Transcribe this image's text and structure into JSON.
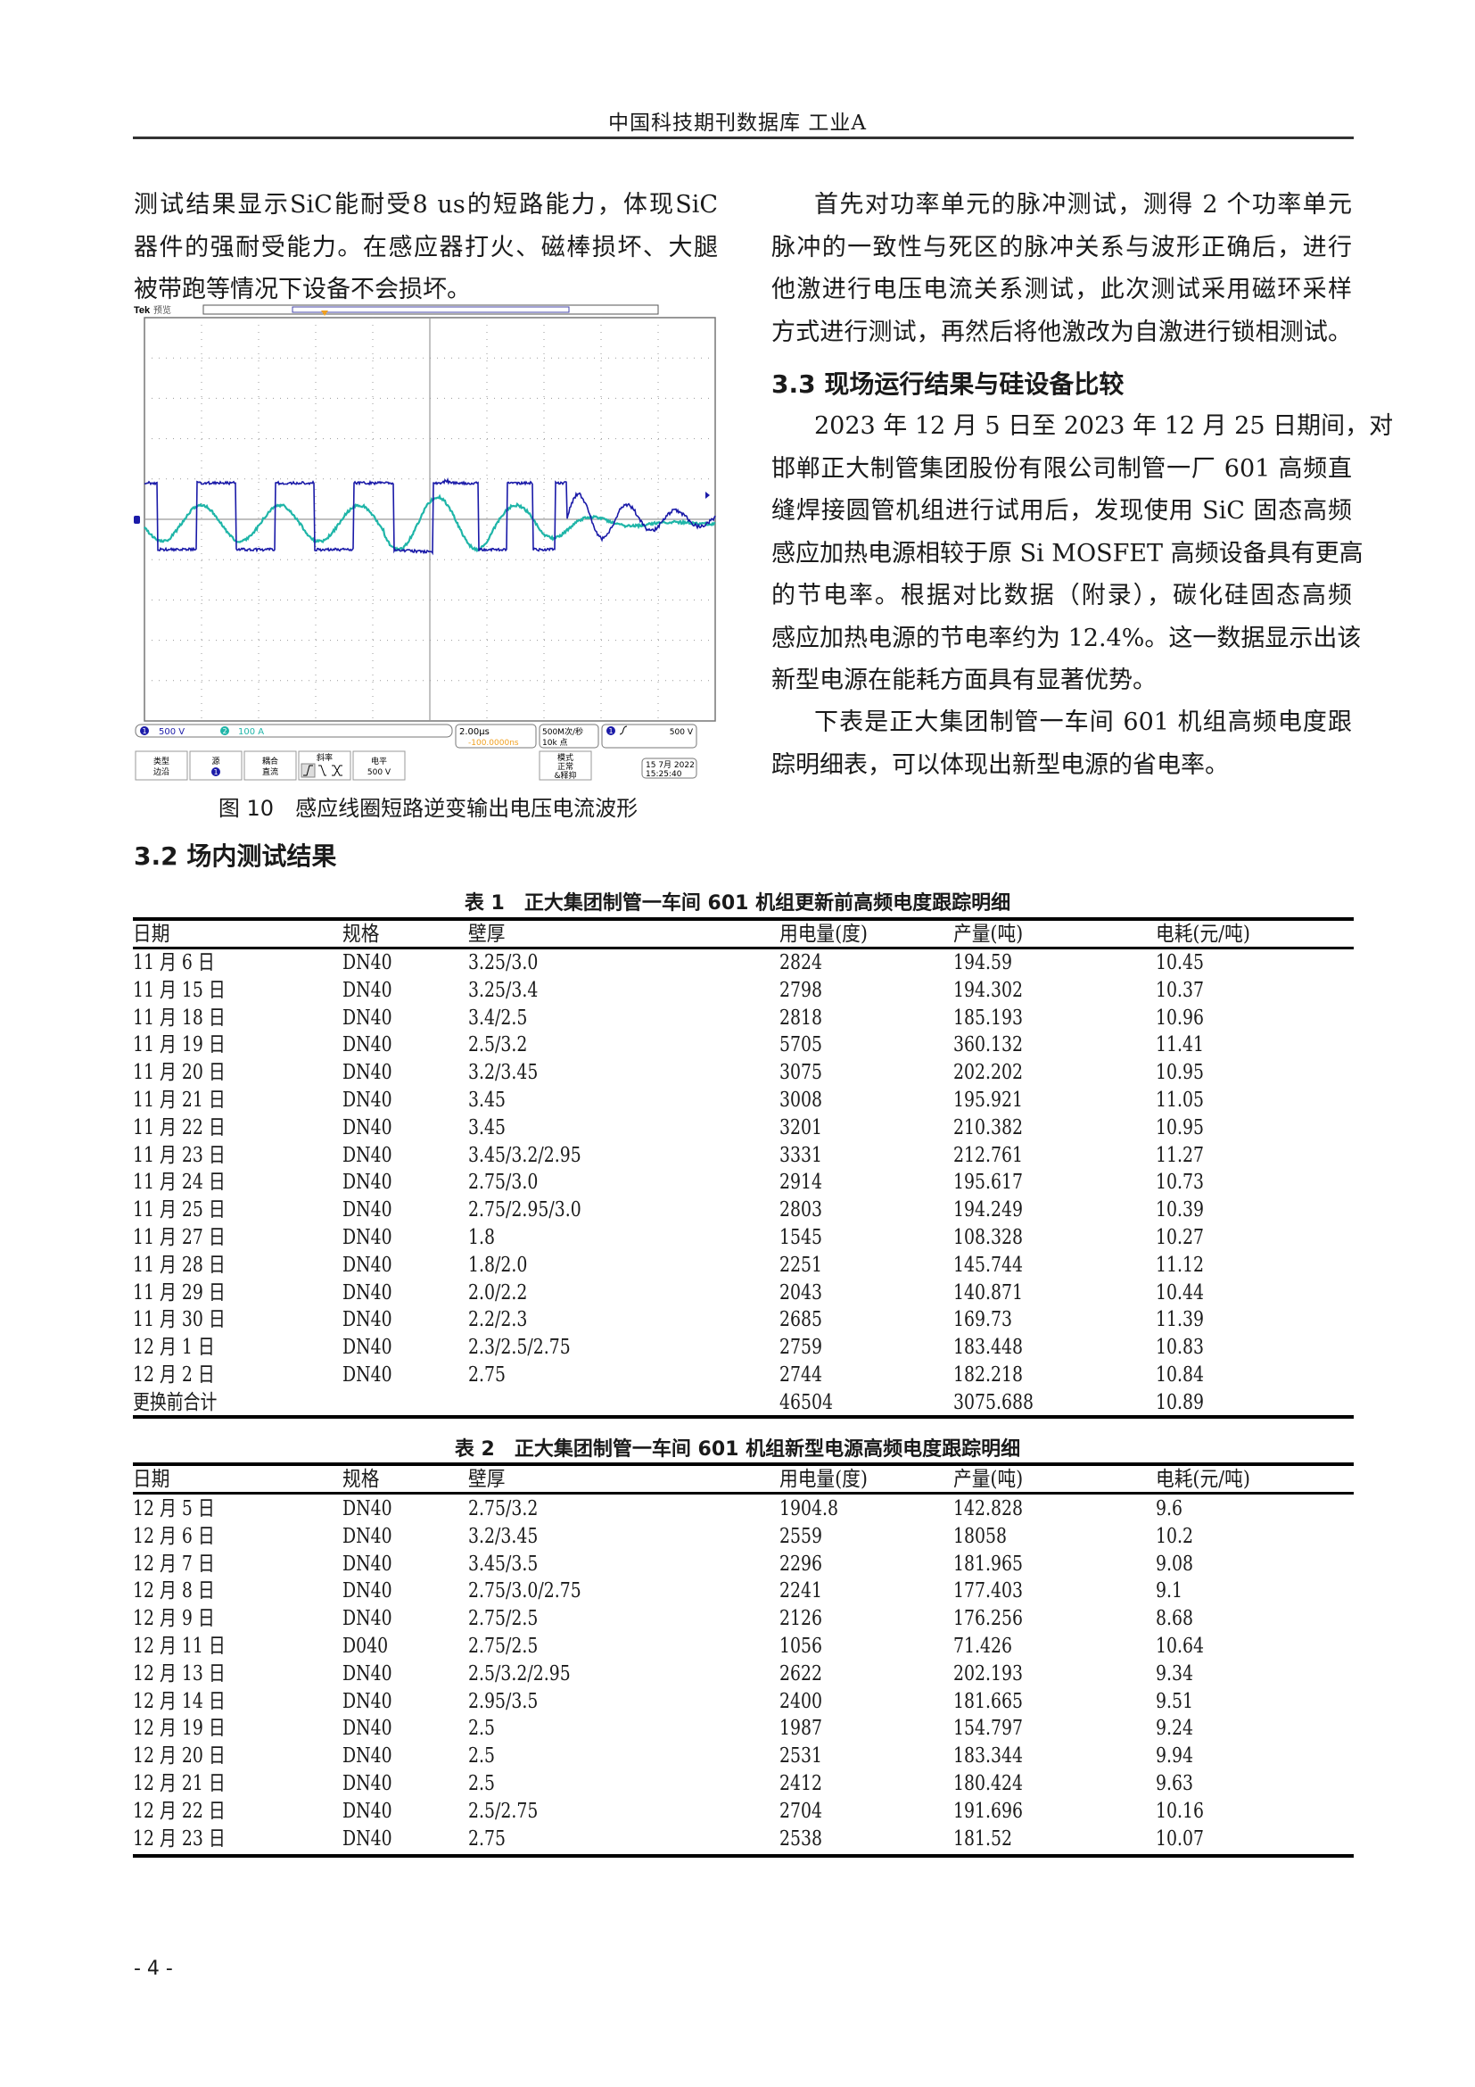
{
  "header": {
    "title": "中国科技期刊数据库 工业A"
  },
  "left_column": {
    "paragraph_lines": [
      "测试结果显示SiC能耐受8 us的短路能力，体现SiC",
      "器件的强耐受能力。在感应器打火、磁棒损坏、大腿",
      "被带跑等情况下设备不会损坏。"
    ]
  },
  "figure": {
    "caption": "图 10　感应线圈短路逆变输出电压电流波形",
    "scope": {
      "brand": "Tek",
      "mode": "预览",
      "ch1_scale": "500 V",
      "ch2_scale": "100 A",
      "ch1_label": "1",
      "ch2_label": "2",
      "timebase": "2.00μs",
      "trigger_offset": "-100.0000ns",
      "sample_rate": "500M次/秒",
      "record_length": "10k 点",
      "trigger_level_readout": "500 V",
      "buttons": [
        {
          "line1": "类型",
          "line2": "边沿"
        },
        {
          "line1": "源",
          "line2": "1"
        },
        {
          "line1": "耦合",
          "line2": "直流"
        },
        {
          "line1": "斜率",
          "line2": ""
        },
        {
          "line1": "电平",
          "line2": "500 V"
        },
        {
          "line1": "模式",
          "line2": "正常",
          "line3": "&释抑"
        }
      ],
      "date": "15 7月  2022",
      "time": "15:25:40",
      "colors": {
        "ch1": "#1a1aa8",
        "ch2": "#1fb5a8",
        "trigger": "#f0a020",
        "grid": "#9a9a9a"
      }
    }
  },
  "section_3_2": {
    "heading": "3.2  场内测试结果"
  },
  "right_column": {
    "intro_lines": [
      "首先对功率单元的脉冲测试，测得 2 个功率单元",
      "脉冲的一致性与死区的脉冲关系与波形正确后，进行",
      "他激进行电压电流关系测试，此次测试采用磁环采样",
      "方式进行测试，再然后将他激改为自激进行锁相测试。"
    ],
    "section_3_3_heading": "3.3  现场运行结果与硅设备比较",
    "p1_lines": [
      "2023 年 12 月 5 日至 2023 年 12 月 25 日期间，对",
      "邯郸正大制管集团股份有限公司制管一厂 601 高频直",
      "缝焊接圆管机组进行试用后，发现使用 SiC 固态高频",
      "感应加热电源相较于原 Si MOSFET 高频设备具有更高",
      "的节电率。根据对比数据（附录），碳化硅固态高频",
      "感应加热电源的节电率约为 12.4%。这一数据显示出该",
      "新型电源在能耗方面具有显著优势。"
    ],
    "p2_lines": [
      "下表是正大集团制管一车间 601 机组高频电度跟",
      "踪明细表，可以体现出新型电源的省电率。"
    ]
  },
  "table1": {
    "caption": "表 1　正大集团制管一车间 601 机组更新前高频电度跟踪明细",
    "columns": [
      "日期",
      "规格",
      "壁厚",
      "用电量(度)",
      "产量(吨)",
      "电耗(元/吨)"
    ],
    "rows": [
      [
        "11 月 6 日",
        "DN40",
        "3.25/3.0",
        "2824",
        "194.59",
        "10.45"
      ],
      [
        "11 月 15 日",
        "DN40",
        "3.25/3.4",
        "2798",
        "194.302",
        "10.37"
      ],
      [
        "11 月 18 日",
        "DN40",
        "3.4/2.5",
        "2818",
        "185.193",
        "10.96"
      ],
      [
        "11 月 19 日",
        "DN40",
        "2.5/3.2",
        "5705",
        "360.132",
        "11.41"
      ],
      [
        "11 月 20 日",
        "DN40",
        "3.2/3.45",
        "3075",
        "202.202",
        "10.95"
      ],
      [
        "11 月 21 日",
        "DN40",
        "3.45",
        "3008",
        "195.921",
        "11.05"
      ],
      [
        "11 月 22 日",
        "DN40",
        "3.45",
        "3201",
        "210.382",
        "10.95"
      ],
      [
        "11 月 23 日",
        "DN40",
        "3.45/3.2/2.95",
        "3331",
        "212.761",
        "11.27"
      ],
      [
        "11 月 24 日",
        "DN40",
        "2.75/3.0",
        "2914",
        "195.617",
        "10.73"
      ],
      [
        "11 月 25 日",
        "DN40",
        "2.75/2.95/3.0",
        "2803",
        "194.249",
        "10.39"
      ],
      [
        "11 月 27 日",
        "DN40",
        "1.8",
        "1545",
        "108.328",
        "10.27"
      ],
      [
        "11 月 28 日",
        "DN40",
        "1.8/2.0",
        "2251",
        "145.744",
        "11.12"
      ],
      [
        "11 月 29 日",
        "DN40",
        "2.0/2.2",
        "2043",
        "140.871",
        "10.44"
      ],
      [
        "11 月 30 日",
        "DN40",
        "2.2/2.3",
        "2685",
        "169.73",
        "11.39"
      ],
      [
        "12 月 1 日",
        "DN40",
        "2.3/2.5/2.75",
        "2759",
        "183.448",
        "10.83"
      ],
      [
        "12 月 2 日",
        "DN40",
        "2.75",
        "2744",
        "182.218",
        "10.84"
      ],
      [
        "更换前合计",
        "",
        "",
        "46504",
        "3075.688",
        "10.89"
      ]
    ]
  },
  "table2": {
    "caption": "表 2　正大集团制管一车间 601 机组新型电源高频电度跟踪明细",
    "columns": [
      "日期",
      "规格",
      "壁厚",
      "用电量(度)",
      "产量(吨)",
      "电耗(元/吨)"
    ],
    "rows": [
      [
        "12 月 5 日",
        "DN40",
        "2.75/3.2",
        "1904.8",
        "142.828",
        "9.6"
      ],
      [
        "12 月 6 日",
        "DN40",
        "3.2/3.45",
        "2559",
        "18058",
        "10.2"
      ],
      [
        "12 月 7 日",
        "DN40",
        "3.45/3.5",
        "2296",
        "181.965",
        "9.08"
      ],
      [
        "12 月 8 日",
        "DN40",
        "2.75/3.0/2.75",
        "2241",
        "177.403",
        "9.1"
      ],
      [
        "12 月 9 日",
        "DN40",
        "2.75/2.5",
        "2126",
        "176.256",
        "8.68"
      ],
      [
        "12 月 11 日",
        "D040",
        "2.75/2.5",
        "1056",
        "71.426",
        "10.64"
      ],
      [
        "12 月 13 日",
        "DN40",
        "2.5/3.2/2.95",
        "2622",
        "202.193",
        "9.34"
      ],
      [
        "12 月 14 日",
        "DN40",
        "2.95/3.5",
        "2400",
        "181.665",
        "9.51"
      ],
      [
        "12 月 19 日",
        "DN40",
        "2.5",
        "1987",
        "154.797",
        "9.24"
      ],
      [
        "12 月 20 日",
        "DN40",
        "2.5",
        "2531",
        "183.344",
        "9.94"
      ],
      [
        "12 月 21 日",
        "DN40",
        "2.5",
        "2412",
        "180.424",
        "9.63"
      ],
      [
        "12 月 22 日",
        "DN40",
        "2.5/2.75",
        "2704",
        "191.696",
        "10.16"
      ],
      [
        "12 月 23 日",
        "DN40",
        "2.75",
        "2538",
        "181.52",
        "10.07"
      ]
    ]
  },
  "footer": {
    "page_number": "- 4 -"
  }
}
